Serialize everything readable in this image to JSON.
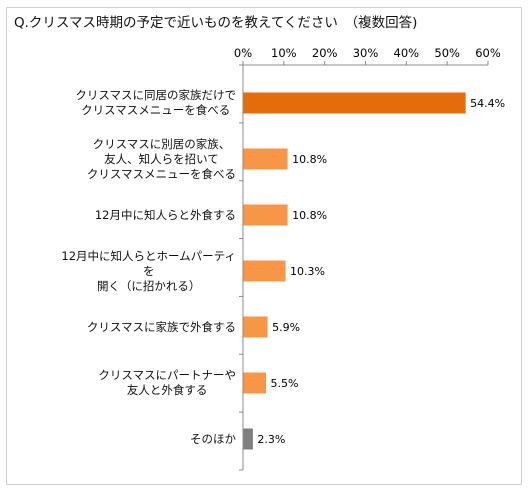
{
  "title": "Q.クリスマス時期の予定で近いものを教えてください　（複数回答)",
  "chart_data": {
    "type": "bar",
    "orientation": "horizontal",
    "title": "Q.クリスマス時期の予定で近いものを教えてください　（複数回答)",
    "xlabel": "",
    "ylabel": "",
    "xlim": [
      0,
      60
    ],
    "ticks": [
      0,
      10,
      20,
      30,
      40,
      50,
      60
    ],
    "tick_labels": [
      "0%",
      "10%",
      "20%",
      "30%",
      "40%",
      "50%",
      "60%"
    ],
    "grid": false,
    "categories": [
      "クリスマスに同居の家族だけで\nクリスマスメニューを食べる",
      "クリスマスに別居の家族、\n友人、知人らを招いて\nクリスマスメニューを食べる",
      "12月中に知人らと外食する",
      "12月中に知人らとホームパーティ\nを\n開く（に招かれる）",
      "クリスマスに家族で外食する",
      "クリスマスにパートナーや\n友人と外食する",
      "そのほか"
    ],
    "values": [
      54.4,
      10.8,
      10.8,
      10.3,
      5.9,
      5.5,
      2.3
    ],
    "value_labels": [
      "54.4%",
      "10.8%",
      "10.8%",
      "10.3%",
      "5.9%",
      "5.5%",
      "2.3%"
    ],
    "bar_colors": [
      "#E46C0A",
      "#F79646",
      "#F79646",
      "#F79646",
      "#F79646",
      "#F79646",
      "#7F7F7F"
    ]
  }
}
